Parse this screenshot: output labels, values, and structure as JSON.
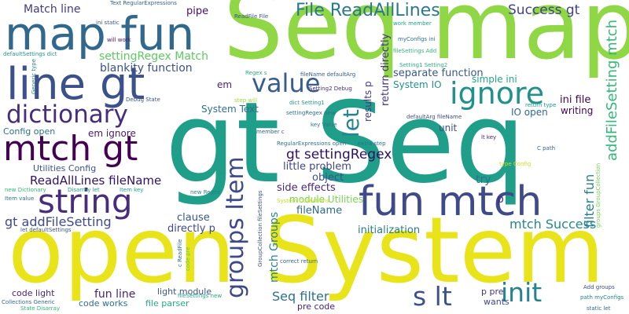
{
  "words": [
    {
      "text": "gt Seq",
      "color": "#1f9e89"
    },
    {
      "text": "Seq map",
      "color": "#8fd744"
    },
    {
      "text": "open System",
      "color": "#e8e419"
    },
    {
      "text": "map fun",
      "color": "#31688e"
    },
    {
      "text": "line gt",
      "color": "#3b518b"
    },
    {
      "text": "fun mtch",
      "color": "#3e4a89"
    },
    {
      "text": "mtch gt",
      "color": "#440154"
    },
    {
      "text": "string",
      "color": "#472d7b"
    },
    {
      "text": "dictionary",
      "color": "#472d7b"
    },
    {
      "text": "value",
      "color": "#365d8d"
    },
    {
      "text": "ignore",
      "color": "#21918c"
    },
    {
      "text": "init",
      "color": "#26828e"
    },
    {
      "text": "s lt",
      "color": "#3b528b"
    },
    {
      "text": "groups Item",
      "color": "#3e4989"
    },
    {
      "text": "let",
      "color": "#25858e"
    },
    {
      "text": "File ReadAllLines",
      "color": "#2a788e"
    },
    {
      "text": "Success gt",
      "color": "#404387"
    },
    {
      "text": "addFileSetting mtch",
      "color": "#35b779"
    },
    {
      "text": "filter fun",
      "color": "#287c8e"
    },
    {
      "text": "gt settingRegex",
      "color": "#2d1160"
    },
    {
      "text": "ReadAllLines fileName",
      "color": "#30106b"
    },
    {
      "text": "gt addFileSetting",
      "color": "#3e4a89"
    },
    {
      "text": "mtch Success",
      "color": "#24878e"
    },
    {
      "text": "settingRegex Match",
      "color": "#5ec962"
    },
    {
      "text": "blankity function",
      "color": "#3b528b"
    },
    {
      "text": "Match line",
      "color": "#443983"
    },
    {
      "text": "pipe",
      "color": "#471063"
    },
    {
      "text": "Seq filter",
      "color": "#2c728e"
    },
    {
      "text": "fun line",
      "color": "#482475"
    },
    {
      "text": "mtch Groups",
      "color": "#25848e"
    },
    {
      "text": "initialization",
      "color": "#287c8e"
    },
    {
      "text": "side effects",
      "color": "#482878"
    },
    {
      "text": "little problem",
      "color": "#3f4788"
    },
    {
      "text": "object",
      "color": "#3b528b"
    },
    {
      "text": "clause",
      "color": "#3b528b"
    },
    {
      "text": "directly p",
      "color": "#3f4889"
    },
    {
      "text": "fileName",
      "color": "#31688e"
    },
    {
      "text": "module Utilities",
      "color": "#7ad151"
    },
    {
      "text": "try",
      "color": "#2c728e"
    },
    {
      "text": "p",
      "color": "#472a7a"
    },
    {
      "text": "separate function",
      "color": "#38588c"
    },
    {
      "text": "simple ini",
      "color": "#21a685"
    },
    {
      "text": "ini file",
      "color": "#440154"
    },
    {
      "text": "IO open",
      "color": "#31688e"
    },
    {
      "text": "writing",
      "color": "#440154"
    },
    {
      "text": "unit",
      "color": "#3d4d8a"
    },
    {
      "text": "System IO",
      "color": "#20928c"
    },
    {
      "text": "return directly",
      "color": "#46327e"
    },
    {
      "text": "results p",
      "color": "#453882"
    },
    {
      "text": "em",
      "color": "#482374"
    },
    {
      "text": "em ignore",
      "color": "#481a6c"
    },
    {
      "text": "System Text",
      "color": "#2e6f8e"
    },
    {
      "text": "Config open",
      "color": "#2c738e"
    },
    {
      "text": "Utilities Config",
      "color": "#3b528b"
    },
    {
      "text": "code light",
      "color": "#482576"
    },
    {
      "text": "light module",
      "color": "#39568c"
    },
    {
      "text": "code works",
      "color": "#2e6e8e"
    },
    {
      "text": "file parser",
      "color": "#25ab82"
    },
    {
      "text": "pre code",
      "color": "#482173"
    },
    {
      "text": "p pre",
      "color": "#46327e"
    },
    {
      "text": "wants",
      "color": "#3e4989"
    },
    {
      "text": "Text RegularExpressions",
      "color": "#355f8d"
    },
    {
      "text": "ini static",
      "color": "#39568c"
    },
    {
      "text": "will work",
      "color": "#481769"
    },
    {
      "text": "work member",
      "color": "#1fa088"
    },
    {
      "text": "myConfigs ini",
      "color": "#2c728e"
    },
    {
      "text": "fileSettings Add",
      "color": "#31b57b"
    },
    {
      "text": "Setting1 Setting2",
      "color": "#29af7f"
    },
    {
      "text": "ReadFile File",
      "color": "#3b528b"
    },
    {
      "text": "defaultSettings dict",
      "color": "#1f958b"
    },
    {
      "text": "Generic type",
      "color": "#26828e"
    },
    {
      "text": "Regex s",
      "color": "#27ad81"
    },
    {
      "text": "fileName defaultArg",
      "color": "#365c8d"
    },
    {
      "text": "Setting2 Debug",
      "color": "#472c7a"
    },
    {
      "text": "step will",
      "color": "#a2da37"
    },
    {
      "text": "Debug State",
      "color": "#3b528b"
    },
    {
      "text": "dict Setting1",
      "color": "#1f9a8a"
    },
    {
      "text": "settingRegex new",
      "color": "#2d718e"
    },
    {
      "text": "defaultArg fileName",
      "color": "#3e4c8a"
    },
    {
      "text": "return type",
      "color": "#1f968b"
    },
    {
      "text": "key Value",
      "color": "#2b758e"
    },
    {
      "text": "member c",
      "color": "#355e8d"
    },
    {
      "text": "RegularExpressions open",
      "color": "#2d718e"
    },
    {
      "text": "extra step",
      "color": "#2d708e"
    },
    {
      "text": "lt key",
      "color": "#481c6e"
    },
    {
      "text": "C path",
      "color": "#31668e"
    },
    {
      "text": "type Config",
      "color": "#cde11d"
    },
    {
      "text": "groups GroupCollection",
      "color": "#75d054"
    },
    {
      "text": "new Dictionary",
      "color": "#32b67a"
    },
    {
      "text": "Disarray let",
      "color": "#1e9b8a"
    },
    {
      "text": "Item key",
      "color": "#20a386"
    },
    {
      "text": "Item value",
      "color": "#2d708e"
    },
    {
      "text": "let defaultSettings",
      "color": "#39568c"
    },
    {
      "text": "new Regex",
      "color": "#27808e"
    },
    {
      "text": "System Collections",
      "color": "#c2df23"
    },
    {
      "text": "GroupCollection fileSettings",
      "color": "#3b528b"
    },
    {
      "text": "code pre",
      "color": "#5ec962"
    },
    {
      "text": "c ReadFile",
      "color": "#2e6f8e"
    },
    {
      "text": "fileSettings new",
      "color": "#25ac82"
    },
    {
      "text": "correct return",
      "color": "#31678e"
    },
    {
      "text": "Collections Generic",
      "color": "#31688e"
    },
    {
      "text": "State Disarray",
      "color": "#31b57b"
    },
    {
      "text": "Add groups",
      "color": "#3e4a89"
    },
    {
      "text": "path myConfigs",
      "color": "#26828e"
    },
    {
      "text": "static let",
      "color": "#306a8e"
    }
  ]
}
